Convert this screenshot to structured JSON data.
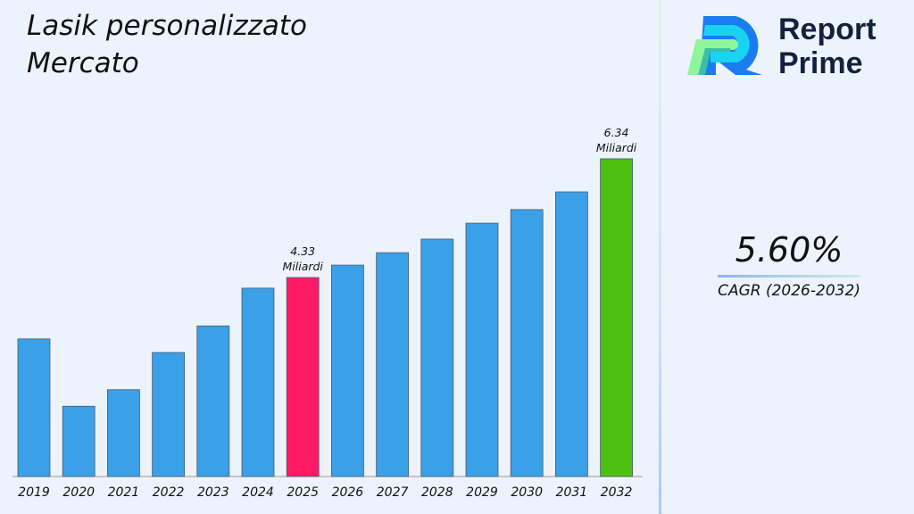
{
  "chart_data": {
    "type": "bar",
    "title": "Lasik personalizzato Mercato",
    "title_lines": [
      "Lasik personalizzato",
      "Mercato"
    ],
    "categories": [
      "2019",
      "2020",
      "2021",
      "2022",
      "2023",
      "2024",
      "2025",
      "2026",
      "2027",
      "2028",
      "2029",
      "2030",
      "2031",
      "2032"
    ],
    "values": [
      3.29,
      2.15,
      2.43,
      3.06,
      3.51,
      4.15,
      4.33,
      4.54,
      4.75,
      4.98,
      5.25,
      5.48,
      5.78,
      6.34
    ],
    "data_labels": {
      "2025": [
        "4.33",
        "Miliardi"
      ],
      "2032": [
        "6.34",
        "Miliardi"
      ]
    },
    "colors": {
      "default": "#3aa0e8",
      "2025": "#ff1a66",
      "2032": "#4cc00f"
    },
    "xlabel": "",
    "ylabel": "",
    "grid": false,
    "yaxis_visible": false
  },
  "brand": {
    "line1": "Report",
    "line2": "Prime"
  },
  "cagr": {
    "value": "5.60%",
    "label": "CAGR (2026-2032)"
  }
}
